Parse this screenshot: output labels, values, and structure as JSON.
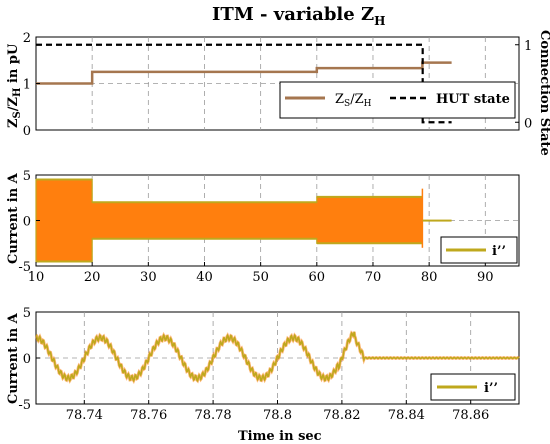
{
  "chart_data": [
    {
      "type": "line",
      "title": "ITM - variable Z",
      "title_sub": "H",
      "xlim": [
        10,
        96
      ],
      "ylim": [
        0,
        2
      ],
      "y2lim": [
        -0.1,
        1.1
      ],
      "yticks": [
        0,
        1,
        2
      ],
      "y2ticks": [
        0,
        1
      ],
      "xgrid": [
        20,
        30,
        40,
        50,
        60,
        70,
        80,
        90
      ],
      "ygrid": [
        1
      ],
      "ylabel": {
        "a": "Z",
        "a_sub": "S",
        "b": "/Z",
        "b_sub": "H",
        "c": " in pU"
      },
      "y2label": "Connection State",
      "series": [
        {
          "label": "Z",
          "label_sub1": "S",
          "label_mid": "/Z",
          "label_sub2": "H",
          "axis": "left",
          "color": "#a5764f",
          "x": [
            10,
            20,
            20,
            60,
            60,
            78.8,
            78.8,
            84
          ],
          "y": [
            1.0,
            1.0,
            1.25,
            1.25,
            1.33,
            1.33,
            1.45,
            1.45
          ]
        },
        {
          "name": "HUT state",
          "axis": "right",
          "color": "#000000",
          "dashed": true,
          "x": [
            10,
            78.85,
            78.85,
            84
          ],
          "y": [
            1.0,
            1.0,
            0.0,
            0.0
          ]
        }
      ],
      "legend_placement": "bottom-right"
    },
    {
      "type": "area",
      "xlim": [
        10,
        96
      ],
      "ylim": [
        -5,
        5
      ],
      "xticks": [
        10,
        20,
        30,
        40,
        50,
        60,
        70,
        80,
        90
      ],
      "yticks": [
        -5,
        0,
        5
      ],
      "ylabel": "Current in A",
      "grid": true,
      "envelope_segments": [
        {
          "x0": 10,
          "x1": 20,
          "lo": -4.5,
          "hi": 4.5
        },
        {
          "x0": 20,
          "x1": 60,
          "lo": -2.0,
          "hi": 2.0
        },
        {
          "x0": 60,
          "x1": 78.8,
          "lo": -2.5,
          "hi": 2.6
        }
      ],
      "spike": {
        "x": 78.8,
        "lo": -3.0,
        "hi": 3.5
      },
      "tail": {
        "x0": 78.85,
        "x1": 84,
        "lo": -0.1,
        "hi": 0.1
      },
      "colors": {
        "fill": "#ff7f0e",
        "edge": "#bfa81d"
      },
      "series": [
        {
          "name": "i’’",
          "color": "#bfa81d"
        }
      ],
      "legend_placement": "bottom-right"
    },
    {
      "type": "line",
      "xlim": [
        78.725,
        78.875
      ],
      "ylim": [
        -5,
        5
      ],
      "xticks": [
        78.74,
        78.76,
        78.78,
        78.8,
        78.82,
        78.84,
        78.86
      ],
      "xtick_labels": [
        "78.74",
        "78.76",
        "78.78",
        "78.8",
        "78.82",
        "78.84",
        "78.86"
      ],
      "yticks": [
        -5,
        0,
        5
      ],
      "xlabel": "Time in sec",
      "ylabel": "Current in A",
      "grid": true,
      "signal": {
        "period": 0.02,
        "amplitude": 2.2,
        "first_peak": 78.745,
        "decay_start": 78.824,
        "decay_end": 78.827,
        "end": 78.875,
        "burst": {
          "x0": 78.819,
          "x1": 78.824,
          "amplitude": 3.0
        }
      },
      "series": [
        {
          "name": "i’’",
          "color": "#bfa81d"
        }
      ],
      "legend_placement": "bottom-right"
    }
  ]
}
